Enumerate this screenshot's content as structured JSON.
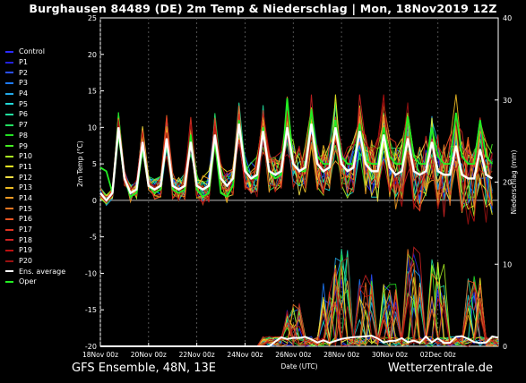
{
  "title": "Burghausen 84489 (DE)  2m Temp & Niederschlag | Mon, 18Nov2019 12Z",
  "footer": {
    "left": "GFS Ensemble, 48N, 13E",
    "right": "Wetterzentrale.de"
  },
  "chart_data": {
    "type": "line",
    "title": "Burghausen 84489 (DE)  2m Temp & Niederschlag | Mon, 18Nov2019 12Z",
    "xlabel": "Date (UTC)",
    "ylabel": "2m Temp (°C)",
    "ylabel_right": "Niederschlag (mm)",
    "xlim": [
      0,
      16.5
    ],
    "ylim": [
      -20,
      25
    ],
    "ylim_right": [
      0,
      40
    ],
    "grid": true,
    "legend_position": "left",
    "x_ticks": [
      {
        "pos": 0,
        "label": "18Nov 00z"
      },
      {
        "pos": 2,
        "label": "20Nov 00z"
      },
      {
        "pos": 4,
        "label": "22Nov 00z"
      },
      {
        "pos": 6,
        "label": "24Nov 00z"
      },
      {
        "pos": 8,
        "label": "26Nov 00z"
      },
      {
        "pos": 10,
        "label": "28Nov 00z"
      },
      {
        "pos": 12,
        "label": "30Nov 00z"
      },
      {
        "pos": 14,
        "label": "02Dec 00z"
      }
    ],
    "y_ticks": [
      25,
      20,
      15,
      10,
      5,
      0,
      -5,
      -10,
      -15,
      -20
    ],
    "y_ticks_right": [
      40,
      30,
      20,
      10,
      0
    ],
    "legend": [
      {
        "name": "Control",
        "color": "#2b2bff"
      },
      {
        "name": "P1",
        "color": "#2222dd"
      },
      {
        "name": "P2",
        "color": "#2a4fff"
      },
      {
        "name": "P3",
        "color": "#1e7bff"
      },
      {
        "name": "P4",
        "color": "#22a8e8"
      },
      {
        "name": "P5",
        "color": "#22d8d8"
      },
      {
        "name": "P6",
        "color": "#22e0a0"
      },
      {
        "name": "P7",
        "color": "#22e060"
      },
      {
        "name": "P8",
        "color": "#22e022"
      },
      {
        "name": "P9",
        "color": "#44ee22"
      },
      {
        "name": "P10",
        "color": "#a8ee22"
      },
      {
        "name": "P11",
        "color": "#eeee22"
      },
      {
        "name": "P12",
        "color": "#eedd44"
      },
      {
        "name": "P13",
        "color": "#eebb22"
      },
      {
        "name": "P14",
        "color": "#ee9922"
      },
      {
        "name": "P15",
        "color": "#ee7722"
      },
      {
        "name": "P16",
        "color": "#ee5522"
      },
      {
        "name": "P17",
        "color": "#dd3322"
      },
      {
        "name": "P18",
        "color": "#cc2222"
      },
      {
        "name": "P19",
        "color": "#bb1111"
      },
      {
        "name": "P20",
        "color": "#991111"
      },
      {
        "name": "Ens. average",
        "color": "#ffffff"
      },
      {
        "name": "Oper",
        "color": "#22ee22"
      }
    ],
    "highlight_series": [
      {
        "name": "Ens. average",
        "color": "#ffffff",
        "x": [
          0,
          0.25,
          0.5,
          0.75,
          1,
          1.25,
          1.5,
          1.75,
          2,
          2.25,
          2.5,
          2.75,
          3,
          3.25,
          3.5,
          3.75,
          4,
          4.25,
          4.5,
          4.75,
          5,
          5.25,
          5.5,
          5.75,
          6,
          6.25,
          6.5,
          6.75,
          7,
          7.25,
          7.5,
          7.75,
          8,
          8.25,
          8.5,
          8.75,
          9,
          9.25,
          9.5,
          9.75,
          10,
          10.25,
          10.5,
          10.75,
          11,
          11.25,
          11.5,
          11.75,
          12,
          12.25,
          12.5,
          12.75,
          13,
          13.25,
          13.5,
          13.75,
          14,
          14.25,
          14.5,
          14.75,
          15,
          15.25,
          15.5,
          15.75,
          16,
          16.25
        ],
        "y": [
          1,
          0,
          1,
          10,
          3,
          1,
          1.5,
          8,
          2,
          1.5,
          2,
          8.5,
          2,
          1.5,
          2,
          8,
          2,
          1.5,
          2,
          9,
          3,
          2,
          3,
          10.5,
          4,
          3,
          3.5,
          9.5,
          4,
          3.5,
          4,
          10,
          5,
          4,
          4.5,
          10.5,
          5,
          4,
          4.5,
          10,
          5,
          4,
          4.5,
          9.5,
          5,
          4,
          4,
          9,
          4.5,
          3.5,
          4,
          8.5,
          4,
          3.5,
          4,
          8,
          4,
          3.5,
          3.5,
          7.5,
          3.5,
          3,
          3,
          7,
          3.5,
          3
        ]
      },
      {
        "name": "Oper",
        "color": "#22ee22",
        "x": [
          0,
          0.25,
          0.5,
          0.75,
          1,
          1.25,
          1.5,
          1.75,
          2,
          2.25,
          2.5,
          2.75,
          3,
          3.25,
          3.5,
          3.75,
          4,
          4.25,
          4.5,
          4.75,
          5,
          5.25,
          5.5,
          5.75,
          6,
          6.25,
          6.5,
          6.75,
          7,
          7.25,
          7.5,
          7.75,
          8,
          8.25,
          8.5,
          8.75,
          9,
          9.25,
          9.5,
          9.75,
          10,
          10.25,
          10.5,
          10.75,
          11,
          11.25,
          11.5,
          11.75,
          12,
          12.25,
          12.5,
          12.75,
          13,
          13.25,
          13.5,
          13.75,
          14,
          14.25,
          14.5,
          14.75,
          15,
          15.25,
          15.5,
          15.75,
          16,
          16.25
        ],
        "y": [
          4.5,
          4,
          1,
          9,
          3,
          0.5,
          1,
          7,
          2,
          1,
          1.5,
          8,
          1.5,
          1,
          1.5,
          9,
          1.5,
          0.5,
          1,
          8,
          1,
          0.5,
          2,
          11,
          4,
          3,
          3,
          10,
          4,
          3,
          3.5,
          14,
          5,
          4,
          4,
          12.5,
          6,
          5,
          5,
          11,
          6,
          5,
          5,
          10.5,
          5.5,
          5,
          5,
          10,
          6,
          5,
          5,
          11.5,
          6,
          5,
          5,
          10,
          6,
          5,
          5,
          12,
          6,
          5,
          5,
          11,
          6,
          5
        ]
      }
    ],
    "precipitation_axis": "right",
    "precipitation_peaks_mm": [
      {
        "x": 8.0,
        "value": 5
      },
      {
        "x": 9.5,
        "value": 7
      },
      {
        "x": 10.0,
        "value": 11
      },
      {
        "x": 11.0,
        "value": 8
      },
      {
        "x": 12.0,
        "value": 7
      },
      {
        "x": 13.0,
        "value": 11
      },
      {
        "x": 14.0,
        "value": 10
      },
      {
        "x": 15.5,
        "value": 8
      }
    ]
  }
}
